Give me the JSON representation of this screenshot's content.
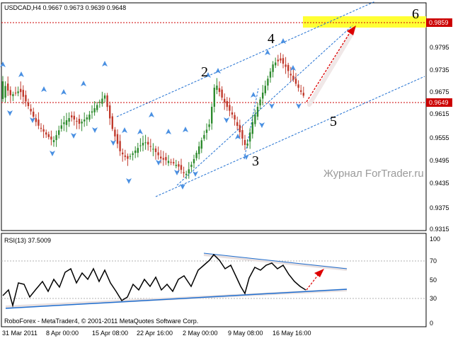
{
  "app": "MetaTrader 4",
  "price_panel": {
    "header": "USDCAD,H4  0.9667 0.9673 0.9639 0.9648",
    "y_ticks": [
      "0.9859",
      "0.9795",
      "0.9735",
      "0.9675",
      "0.9615",
      "0.9555",
      "0.9495",
      "0.9435",
      "0.9375",
      "0.9315"
    ],
    "label_target": "0.9859",
    "label_current": "0.9649",
    "target_price": 0.9859,
    "current_price": 0.9649
  },
  "wave_labels": [
    "2",
    "3",
    "4",
    "5",
    "6"
  ],
  "watermark": "Журнал ForTrader.ru",
  "rsi_panel": {
    "header": "RSI(13) 37.5009",
    "y_ticks": [
      "100",
      "70",
      "50",
      "30",
      "0"
    ]
  },
  "x_axis": {
    "ticks": [
      "31 Mar 2011",
      "8 Apr 00:00",
      "15 Apr 08:00",
      "22 Apr 16:00",
      "2 May 00:00",
      "9 May 08:00",
      "16 May 16:00"
    ]
  },
  "footer": "RoboForex - MetaTrader4, © 2001-2011 MetaQuotes Software Corp.",
  "colors": {
    "bull_candle": "#2e8b2e",
    "bear_candle": "#c0392b",
    "level_line": "#cc0000",
    "channel": "#1f6fd1",
    "fractal": "#4a90e2",
    "target_zone": "#ffff33",
    "forecast_arrow": "#dd0000"
  }
}
